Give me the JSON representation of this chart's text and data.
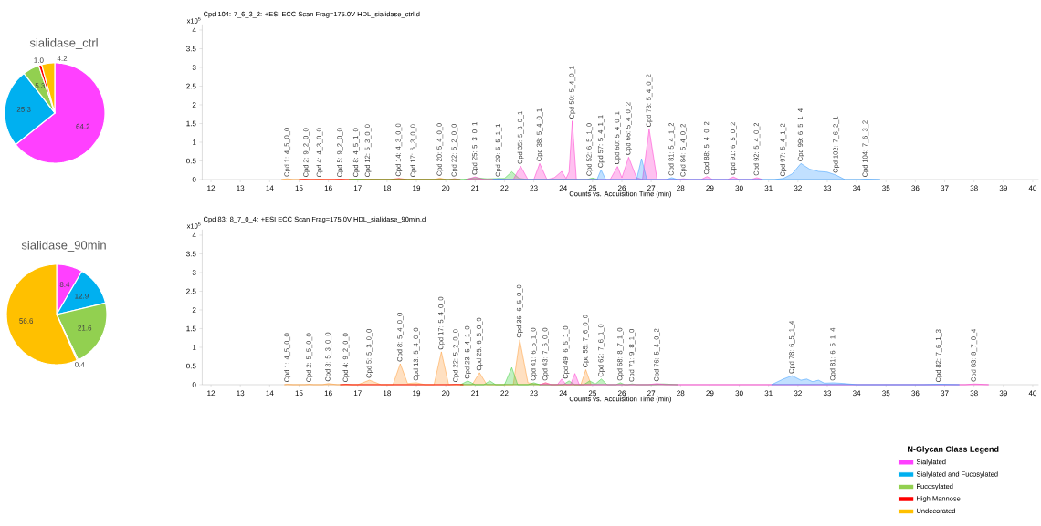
{
  "chart_data": [
    {
      "type": "pie",
      "title": "sialidase_ctrl",
      "categories": [
        null,
        null,
        null,
        null,
        null
      ],
      "values": [
        64.2,
        25.3,
        5.3,
        1.0,
        4.2
      ],
      "value_labels": [
        "64.2",
        "25.3",
        "5.3",
        "1.0",
        "4.2"
      ],
      "colors": [
        "#ff40ff",
        "#00b0f0",
        "#92d050",
        "#ff0000",
        "#ffc000"
      ]
    },
    {
      "type": "area",
      "title": "Cpd 104: 7_6_3_2: +ESI ECC Scan Frag=175.0V HDL_sialidase_ctrl.d",
      "xlabel": "Counts vs. Acquisition Time (min)",
      "ylabel": "x10$^{5}$",
      "xlim": [
        11.7,
        40.2
      ],
      "ylim": [
        0,
        4.15
      ],
      "xticks": [
        12,
        13,
        14,
        15,
        16,
        17,
        18,
        19,
        20,
        21,
        22,
        23,
        24,
        25,
        26,
        27,
        28,
        29,
        30,
        31,
        32,
        33,
        34,
        35,
        36,
        37,
        38,
        39,
        40
      ],
      "yticks": [
        0,
        0.5,
        1,
        1.5,
        2,
        2.5,
        3,
        3.5,
        4
      ],
      "grid": false,
      "marker": "none",
      "series": [
        {
          "color": "#ff9933",
          "x": [
            14.4,
            14.6,
            14.8,
            15.5,
            15.7,
            15.9,
            17.0,
            17.3,
            17.8,
            18.7,
            18.9,
            19.1,
            19.6,
            19.8,
            20.0
          ],
          "values": [
            0,
            0.02,
            0,
            0,
            0.01,
            0,
            0,
            0.01,
            0,
            0,
            0.01,
            0,
            0,
            0.04,
            0
          ]
        },
        {
          "color": "#ff0000",
          "x": [
            15.0,
            15.2,
            15.4,
            16.2,
            16.4,
            16.6,
            18.1,
            18.4,
            18.7,
            20.1,
            20.3,
            20.5
          ],
          "values": [
            0,
            0.01,
            0,
            0,
            0.01,
            0,
            0,
            0.03,
            0,
            0,
            0.02,
            0
          ]
        },
        {
          "color": "#33cc33",
          "x": [
            16.7,
            17.0,
            17.3,
            20.6,
            21.0,
            21.4,
            22.0,
            22.25,
            22.5,
            22.8,
            24.8,
            25.0,
            25.2
          ],
          "values": [
            0,
            0.01,
            0,
            0,
            0.05,
            0.02,
            0.03,
            0.21,
            0.03,
            0,
            0,
            0.04,
            0
          ]
        },
        {
          "color": "#ff33cc",
          "x": [
            20.7,
            21.0,
            21.3,
            22.3,
            22.55,
            22.8,
            23.0,
            23.2,
            23.45,
            23.7,
            23.95,
            24.1,
            24.2,
            24.31,
            24.45,
            25.6,
            25.85,
            26.0,
            26.23,
            26.5,
            26.7,
            26.93,
            27.2,
            27.9,
            28.1,
            28.3,
            28.7,
            28.9,
            29.1,
            29.6,
            29.8,
            30.0,
            30.4,
            30.6,
            30.8
          ],
          "values": [
            0,
            0.07,
            0,
            0,
            0.36,
            0,
            0,
            0.43,
            0,
            0.05,
            0.22,
            0.03,
            0.2,
            1.57,
            0,
            0,
            0.35,
            0.05,
            0.6,
            0.05,
            0,
            1.35,
            0,
            0,
            0.02,
            0,
            0,
            0.08,
            0,
            0,
            0.07,
            0,
            0,
            0.05,
            0
          ]
        },
        {
          "color": "#3399ff",
          "x": [
            21.6,
            21.8,
            22.0,
            25.15,
            25.29,
            25.45,
            26.5,
            26.67,
            26.85,
            27.5,
            27.7,
            27.9,
            31.2,
            31.5,
            31.8,
            32.1,
            32.4,
            32.7,
            33.0,
            33.3,
            33.6,
            34.1,
            34.3,
            34.8
          ],
          "values": [
            0,
            0.02,
            0,
            0,
            0.26,
            0,
            0,
            0.56,
            0,
            0,
            0.05,
            0,
            0,
            0.03,
            0.15,
            0.43,
            0.28,
            0.22,
            0.2,
            0.12,
            0,
            0,
            0.01,
            0
          ]
        }
      ],
      "annotations": [
        {
          "text": "Cpd 1: 4_5_0_0",
          "x": 14.6,
          "y": 0.02
        },
        {
          "text": "Cpd 2: 9_2_0_0",
          "x": 15.25,
          "y": 0.01
        },
        {
          "text": "Cpd 4: 4_3_0_0",
          "x": 15.7,
          "y": 0.01
        },
        {
          "text": "Cpd 5: 9_2_0_0",
          "x": 16.4,
          "y": 0.01
        },
        {
          "text": "Cpd 8: 4_5_1_0",
          "x": 16.95,
          "y": 0.01
        },
        {
          "text": "Cpd 12: 5_3_0_0",
          "x": 17.35,
          "y": 0.01
        },
        {
          "text": "Cpd 14: 4_3_0_0",
          "x": 18.4,
          "y": 0.03
        },
        {
          "text": "Cpd 17: 6_3_0_0",
          "x": 18.9,
          "y": 0.01
        },
        {
          "text": "Cpd 20: 5_4_0_0",
          "x": 19.8,
          "y": 0.04
        },
        {
          "text": "Cpd 22: 5_2_0_0",
          "x": 20.3,
          "y": 0.02
        },
        {
          "text": "Cpd 25: 5_3_0_1",
          "x": 21.0,
          "y": 0.07
        },
        {
          "text": "Cpd 29: 5_5_1_1",
          "x": 21.8,
          "y": 0.02
        },
        {
          "text": "Cpd 35: 5_3_0_1",
          "x": 22.55,
          "y": 0.36
        },
        {
          "text": "Cpd 38: 5_4_0_1",
          "x": 23.2,
          "y": 0.43
        },
        {
          "text": "Cpd 50: 5_4_0_1",
          "x": 24.31,
          "y": 1.57
        },
        {
          "text": "Cpd 52: 6_5_1_0",
          "x": 24.9,
          "y": 0.04
        },
        {
          "text": "Cpd 57: 5_4_1_1",
          "x": 25.29,
          "y": 0.26
        },
        {
          "text": "Cpd 60: 5_4_0_1",
          "x": 25.85,
          "y": 0.35
        },
        {
          "text": "Cpd 66: 5_4_0_2",
          "x": 26.23,
          "y": 0.6
        },
        {
          "text": "Cpd 73: 5_4_0_2",
          "x": 26.93,
          "y": 1.35
        },
        {
          "text": "Cpd 81: 5_4_1_2",
          "x": 27.7,
          "y": 0.05
        },
        {
          "text": "Cpd 84: 5_4_0_2",
          "x": 28.1,
          "y": 0.02
        },
        {
          "text": "Cpd 88: 5_4_0_2",
          "x": 28.9,
          "y": 0.08
        },
        {
          "text": "Cpd 91: 6_5_0_2",
          "x": 29.8,
          "y": 0.07
        },
        {
          "text": "Cpd 92: 5_4_0_2",
          "x": 30.6,
          "y": 0.05
        },
        {
          "text": "Cpd 97: 5_4_1_2",
          "x": 31.5,
          "y": 0.03
        },
        {
          "text": "Cpd 99: 6_5_1_4",
          "x": 32.1,
          "y": 0.43
        },
        {
          "text": "Cpd 102: 7_6_2_1",
          "x": 33.3,
          "y": 0.12
        },
        {
          "text": "Cpd 104: 7_6_3_2",
          "x": 34.3,
          "y": 0.01
        }
      ]
    },
    {
      "type": "pie",
      "title": "sialidase_90min",
      "categories": [
        "Sialylated",
        "Sialylated and Fucosylated",
        "Fucosylated",
        "High Mannose",
        "Undecorated"
      ],
      "values": [
        8.4,
        12.9,
        21.6,
        0.4,
        56.6
      ],
      "colors": [
        "#ff40ff",
        "#00b0f0",
        "#92d050",
        "#ff0000",
        "#ffc000"
      ],
      "data_labels": true,
      "legend": "bottom right",
      "legend_title": "N-Glycan Class Legend"
    },
    {
      "type": "area",
      "title": "Cpd 83: 8_7_0_4: +ESI ECC Scan Frag=175.0V HDL_sialidase_90min.d",
      "xlabel": "Counts vs. Acquisition Time (min)",
      "ylabel": "x10$^{5}$",
      "xlim": [
        11.7,
        40.2
      ],
      "ylim": [
        0,
        4.15
      ],
      "xticks": [
        12,
        13,
        14,
        15,
        16,
        17,
        18,
        19,
        20,
        21,
        22,
        23,
        24,
        25,
        26,
        27,
        28,
        29,
        30,
        31,
        32,
        33,
        34,
        35,
        36,
        37,
        38,
        39,
        40
      ],
      "yticks": [
        0,
        0.5,
        1,
        1.5,
        2,
        2.5,
        3,
        3.5,
        4
      ],
      "grid": false,
      "marker": "none",
      "series": [
        {
          "color": "#ff9933",
          "x": [
            14.5,
            14.6,
            14.8,
            15.2,
            15.35,
            15.5,
            15.8,
            16.0,
            16.3,
            17.0,
            17.4,
            17.8,
            18.2,
            18.45,
            18.7,
            19.0,
            19.3,
            19.6,
            19.85,
            20.1,
            20.9,
            21.15,
            21.4,
            22.3,
            22.52,
            22.8,
            23.2,
            23.4,
            23.6,
            24.6,
            24.77,
            24.95
          ],
          "values": [
            0,
            0.01,
            0,
            0,
            0.01,
            0,
            0,
            0.03,
            0,
            0,
            0.12,
            0,
            0,
            0.56,
            0.03,
            0.05,
            0,
            0,
            0.88,
            0,
            0,
            0.32,
            0,
            0,
            1.2,
            0.05,
            0,
            0.05,
            0,
            0,
            0.4,
            0
          ]
        },
        {
          "color": "#33cc33",
          "x": [
            20.5,
            20.75,
            21.0,
            21.3,
            21.5,
            21.7,
            22.0,
            22.25,
            22.45,
            22.8,
            23.0,
            23.2,
            24.0,
            24.2,
            24.4,
            24.7,
            24.9,
            25.1,
            25.3,
            25.5,
            25.8,
            25.95,
            26.1,
            26.2,
            26.35,
            26.5,
            27.0,
            27.4,
            27.9
          ],
          "values": [
            0,
            0.1,
            0,
            0,
            0.1,
            0,
            0,
            0.46,
            0,
            0,
            0.05,
            0,
            0,
            0.1,
            0,
            0,
            0.1,
            0.02,
            0.15,
            0,
            0,
            0.05,
            0,
            0,
            0.02,
            0,
            0,
            0.02,
            0
          ]
        },
        {
          "color": "#ff33cc",
          "x": [
            23.2,
            23.4,
            23.6,
            23.8,
            23.95,
            24.1,
            24.25,
            24.4,
            24.55,
            26.9,
            27.2,
            27.5,
            37.7,
            38.0,
            38.5
          ],
          "values": [
            0,
            0.05,
            0,
            0,
            0.15,
            0,
            0,
            0.3,
            0,
            0,
            0.03,
            0,
            0,
            0.02,
            0
          ]
        },
        {
          "color": "#ff0000",
          "x": [
            16.4,
            16.6,
            16.8,
            20.1,
            20.35,
            20.6
          ],
          "values": [
            0,
            0.01,
            0,
            0,
            0.01,
            0
          ]
        },
        {
          "color": "#3399ff",
          "x": [
            31.1,
            31.5,
            31.8,
            32.1,
            32.3,
            32.5,
            32.7,
            32.9,
            33.2,
            33.6,
            34.0,
            36.3,
            36.8,
            37.5
          ],
          "values": [
            0,
            0.15,
            0.24,
            0.12,
            0.15,
            0.08,
            0.12,
            0.04,
            0.05,
            0.03,
            0,
            0,
            0.01,
            0
          ]
        }
      ],
      "annotations": [
        {
          "text": "Cpd 1: 4_5_0_0",
          "x": 14.6,
          "y": 0.01
        },
        {
          "text": "Cpd 2: 5_5_0_0",
          "x": 15.35,
          "y": 0.01
        },
        {
          "text": "Cpd 3: 5_3_0_0",
          "x": 16.0,
          "y": 0.03
        },
        {
          "text": "Cpd 4: 9_2_0_0",
          "x": 16.6,
          "y": 0.01
        },
        {
          "text": "Cpd 5: 5_3_0_0",
          "x": 17.4,
          "y": 0.12
        },
        {
          "text": "Cpd 8: 5_4_0_0",
          "x": 18.45,
          "y": 0.56
        },
        {
          "text": "Cpd 13: 5_4_0_0",
          "x": 19.0,
          "y": 0.05
        },
        {
          "text": "Cpd 17: 5_4_0_0",
          "x": 19.85,
          "y": 0.88
        },
        {
          "text": "Cpd 22: 5_2_0_0",
          "x": 20.35,
          "y": 0.01
        },
        {
          "text": "Cpd 23: 5_4_1_0",
          "x": 20.75,
          "y": 0.1
        },
        {
          "text": "Cpd 25: 6_5_0_0",
          "x": 21.15,
          "y": 0.32
        },
        {
          "text": "Cpd 36: 6_5_0_0",
          "x": 22.52,
          "y": 1.2
        },
        {
          "text": "Cpd 41: 6_5_1_0",
          "x": 23.0,
          "y": 0.05
        },
        {
          "text": "Cpd 43: 7_6_0_0",
          "x": 23.4,
          "y": 0.05
        },
        {
          "text": "Cpd 49: 6_5_1_0",
          "x": 24.1,
          "y": 0.1
        },
        {
          "text": "Cpd 55: 7_6_0_0",
          "x": 24.77,
          "y": 0.4
        },
        {
          "text": "Cpd 62: 7_6_1_0",
          "x": 25.3,
          "y": 0.15
        },
        {
          "text": "Cpd 68: 8_7_1_0",
          "x": 25.95,
          "y": 0.05
        },
        {
          "text": "Cpd 71: 9_8_1_0",
          "x": 26.35,
          "y": 0.02
        },
        {
          "text": "Cpd 76: 5_4_0_2",
          "x": 27.2,
          "y": 0.03
        },
        {
          "text": "Cpd 78: 6_5_1_4",
          "x": 31.8,
          "y": 0.24
        },
        {
          "text": "Cpd 81: 6_5_1_4",
          "x": 33.2,
          "y": 0.05
        },
        {
          "text": "Cpd 82: 7_6_1_3",
          "x": 36.8,
          "y": 0.01
        },
        {
          "text": "Cpd 83: 8_7_0_4",
          "x": 38.0,
          "y": 0.02
        }
      ]
    }
  ]
}
